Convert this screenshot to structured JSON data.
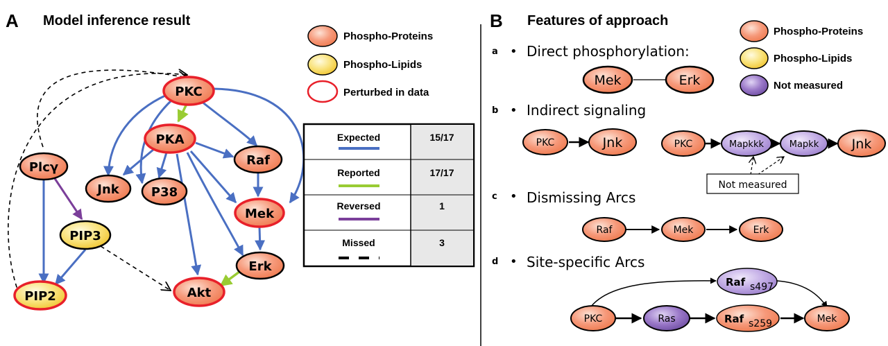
{
  "panel_a": {
    "letter": "A",
    "title": "Model inference result",
    "legend": {
      "proteins": "Phospho-Proteins",
      "lipids": "Phospho-Lipids",
      "perturbed": "Perturbed in data"
    },
    "nodes": {
      "pkc": "PKC",
      "pka": "PKA",
      "plcg": "Plcγ",
      "raf": "Raf",
      "jnk": "Jnk",
      "p38": "P38",
      "mek": "Mek",
      "pip3": "PIP3",
      "erk": "Erk",
      "pip2": "PIP2",
      "akt": "Akt"
    },
    "table": {
      "rows": [
        {
          "label": "Expected",
          "value": "15/17",
          "color": "#4a6fc2"
        },
        {
          "label": "Reported",
          "value": "17/17",
          "color": "#99cc33"
        },
        {
          "label": "Reversed",
          "value": "1",
          "color": "#7b3f9a"
        },
        {
          "label": "Missed",
          "value": "3",
          "color": "#000000"
        }
      ]
    }
  },
  "panel_b": {
    "letter": "B",
    "title": "Features of approach",
    "legend": {
      "proteins": "Phospho-Proteins",
      "lipids": "Phospho-Lipids",
      "not_measured": "Not measured"
    },
    "items": [
      {
        "index": "a",
        "bullet": "•",
        "text": "Direct phosphorylation:"
      },
      {
        "index": "b",
        "bullet": "•",
        "text": "Indirect signaling"
      },
      {
        "index": "c",
        "bullet": "•",
        "text": "Dismissing Arcs"
      },
      {
        "index": "d",
        "bullet": "•",
        "text": "Site-specific Arcs"
      }
    ],
    "direct": {
      "n1": "Mek",
      "n2": "Erk"
    },
    "indirect": {
      "n1": "PKC",
      "n2": "Jnk",
      "n3": "PKC",
      "n4": "Mapkkk",
      "n5": "Mapkk",
      "n6": "Jnk",
      "callout": "Not measured"
    },
    "dismissing": {
      "n1": "Raf",
      "n2": "Mek",
      "n3": "Erk"
    },
    "site": {
      "pkc": "PKC",
      "ras": "Ras",
      "raf1_base": "Raf",
      "raf1_sub": "s497",
      "raf2_base": "Raf",
      "raf2_sub": "s259",
      "mek": "Mek"
    }
  },
  "colors": {
    "protein_fill": "#f4875e",
    "lipid_fill": "#f2cf3c",
    "not_measured_fill": "#a48ad0",
    "perturbed_border": "#e8202a",
    "expected": "#4a6fc2",
    "reported": "#99cc33",
    "reversed": "#7b3f9a"
  }
}
